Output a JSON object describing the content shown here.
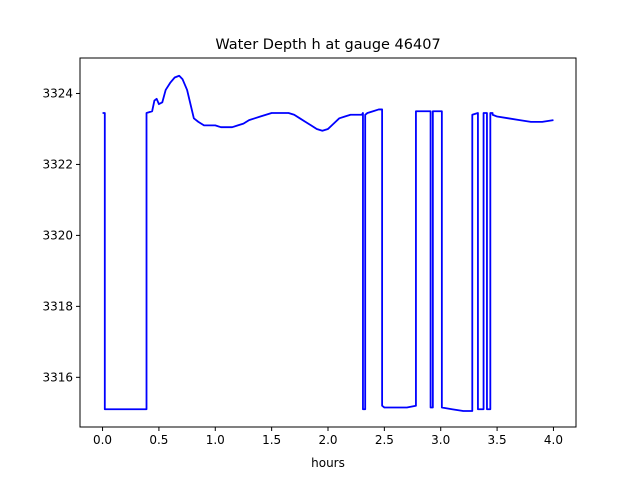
{
  "chart_data": {
    "type": "line",
    "title": "Water Depth h at gauge 46407",
    "xlabel": "hours",
    "ylabel": "",
    "xlim": [
      -0.2,
      4.2
    ],
    "ylim": [
      3314.6,
      3325.0
    ],
    "xticks": [
      0.0,
      0.5,
      1.0,
      1.5,
      2.0,
      2.5,
      3.0,
      3.5,
      4.0
    ],
    "xtick_labels": [
      "0.0",
      "0.5",
      "1.0",
      "1.5",
      "2.0",
      "2.5",
      "3.0",
      "3.5",
      "4.0"
    ],
    "yticks": [
      3316,
      3318,
      3320,
      3322,
      3324
    ],
    "ytick_labels": [
      "3316",
      "3318",
      "3320",
      "3322",
      "3324"
    ],
    "grid": false,
    "series": [
      {
        "color": "#0000ff",
        "x": [
          0.0,
          0.02,
          0.02,
          0.2,
          0.3,
          0.39,
          0.39,
          0.44,
          0.46,
          0.48,
          0.5,
          0.53,
          0.56,
          0.6,
          0.64,
          0.68,
          0.71,
          0.75,
          0.78,
          0.81,
          0.85,
          0.9,
          0.95,
          1.0,
          1.05,
          1.1,
          1.15,
          1.2,
          1.25,
          1.3,
          1.35,
          1.4,
          1.45,
          1.5,
          1.55,
          1.6,
          1.65,
          1.7,
          1.75,
          1.8,
          1.85,
          1.9,
          1.95,
          2.0,
          2.05,
          2.1,
          2.15,
          2.2,
          2.25,
          2.3,
          2.31,
          2.31,
          2.33,
          2.33,
          2.35,
          2.4,
          2.45,
          2.48,
          2.48,
          2.5,
          2.6,
          2.7,
          2.78,
          2.78,
          2.9,
          2.91,
          2.91,
          2.93,
          2.93,
          3.0,
          3.01,
          3.01,
          3.1,
          3.2,
          3.28,
          3.28,
          3.33,
          3.33,
          3.38,
          3.38,
          3.41,
          3.41,
          3.44,
          3.44,
          3.46,
          3.46,
          3.5,
          3.6,
          3.7,
          3.8,
          3.9,
          4.0
        ],
        "y": [
          3323.45,
          3323.45,
          3315.1,
          3315.1,
          3315.1,
          3315.1,
          3323.45,
          3323.5,
          3323.8,
          3323.85,
          3323.7,
          3323.75,
          3324.1,
          3324.3,
          3324.45,
          3324.5,
          3324.4,
          3324.1,
          3323.7,
          3323.3,
          3323.2,
          3323.1,
          3323.1,
          3323.1,
          3323.05,
          3323.05,
          3323.05,
          3323.1,
          3323.15,
          3323.25,
          3323.3,
          3323.35,
          3323.4,
          3323.45,
          3323.45,
          3323.45,
          3323.45,
          3323.4,
          3323.3,
          3323.2,
          3323.1,
          3323.0,
          3322.95,
          3323.0,
          3323.15,
          3323.3,
          3323.35,
          3323.4,
          3323.4,
          3323.4,
          3323.45,
          3315.1,
          3315.1,
          3323.4,
          3323.45,
          3323.5,
          3323.55,
          3323.55,
          3315.2,
          3315.15,
          3315.15,
          3315.15,
          3315.2,
          3323.5,
          3323.5,
          3323.5,
          3315.15,
          3315.15,
          3323.5,
          3323.5,
          3323.5,
          3315.15,
          3315.1,
          3315.05,
          3315.05,
          3323.4,
          3323.45,
          3315.1,
          3315.1,
          3323.45,
          3323.45,
          3315.1,
          3315.1,
          3323.45,
          3323.45,
          3323.4,
          3323.35,
          3323.3,
          3323.25,
          3323.2,
          3323.2,
          3323.25
        ]
      }
    ]
  }
}
